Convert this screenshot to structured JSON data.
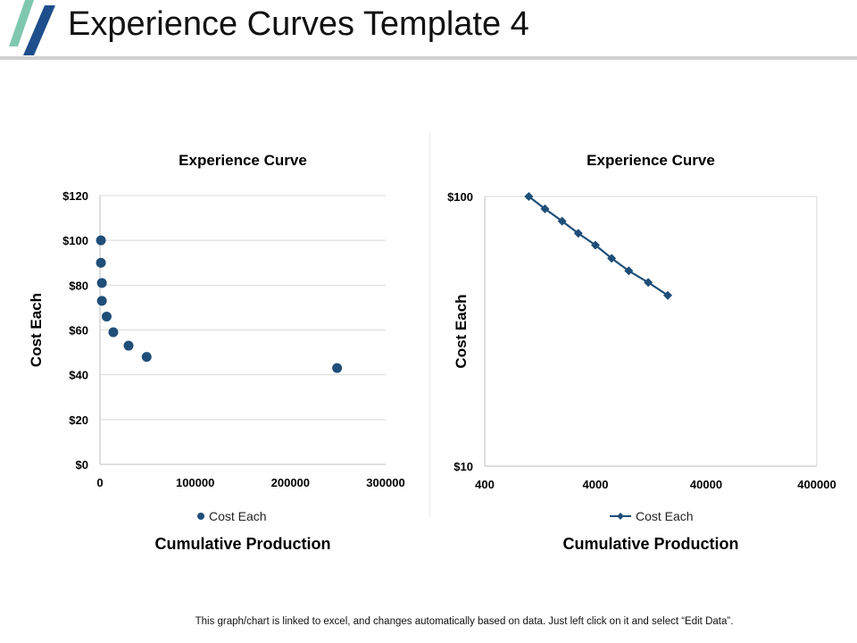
{
  "page": {
    "title": "Experience Curves Template 4",
    "footer": "This graph/chart is linked to excel, and changes automatically based on data. Just left click on it and select “Edit Data”."
  },
  "colors": {
    "series": "#1f4e79",
    "logo_teal": "#7fc8b0",
    "logo_navy": "#1f4e8c",
    "grid": "#d9d9d9"
  },
  "chart_data": [
    {
      "type": "scatter",
      "title": "Experience Curve",
      "xlabel": "Cumulative Production",
      "ylabel": "Cost Each",
      "xlim": [
        0,
        300000
      ],
      "ylim": [
        0,
        120
      ],
      "x_ticks": [
        0,
        100000,
        200000,
        300000
      ],
      "x_tick_labels": [
        "0",
        "100000",
        "200000",
        "300000"
      ],
      "y_ticks": [
        0,
        20,
        40,
        60,
        80,
        100,
        120
      ],
      "y_tick_labels": [
        "$0",
        "$20",
        "$40",
        "$60",
        "$80",
        "$100",
        "$120"
      ],
      "grid": true,
      "legend": "bottom",
      "series": [
        {
          "name": "Cost Each",
          "x": [
            1000,
            1000,
            2000,
            2000,
            7000,
            14000,
            30000,
            49000,
            249000
          ],
          "y": [
            100,
            90,
            81,
            73,
            66,
            59,
            53,
            48,
            43
          ]
        }
      ]
    },
    {
      "type": "line",
      "scale": "log-log",
      "title": "Experience Curve",
      "xlabel": "Cumulative Production",
      "ylabel": "Cost Each",
      "xlim": [
        400,
        400000
      ],
      "ylim": [
        10,
        100
      ],
      "x_ticks": [
        400,
        4000,
        40000,
        400000
      ],
      "x_tick_labels": [
        "400",
        "4000",
        "40000",
        "400000"
      ],
      "y_ticks": [
        10,
        100
      ],
      "y_tick_labels": [
        "$10",
        "$100"
      ],
      "grid": true,
      "legend": "bottom",
      "series": [
        {
          "name": "Cost Each",
          "x": [
            1000,
            1400,
            2000,
            2800,
            4000,
            5600,
            8000,
            12000,
            18000
          ],
          "y": [
            100,
            90,
            81,
            73,
            66,
            59,
            53,
            48,
            43
          ]
        }
      ]
    }
  ]
}
